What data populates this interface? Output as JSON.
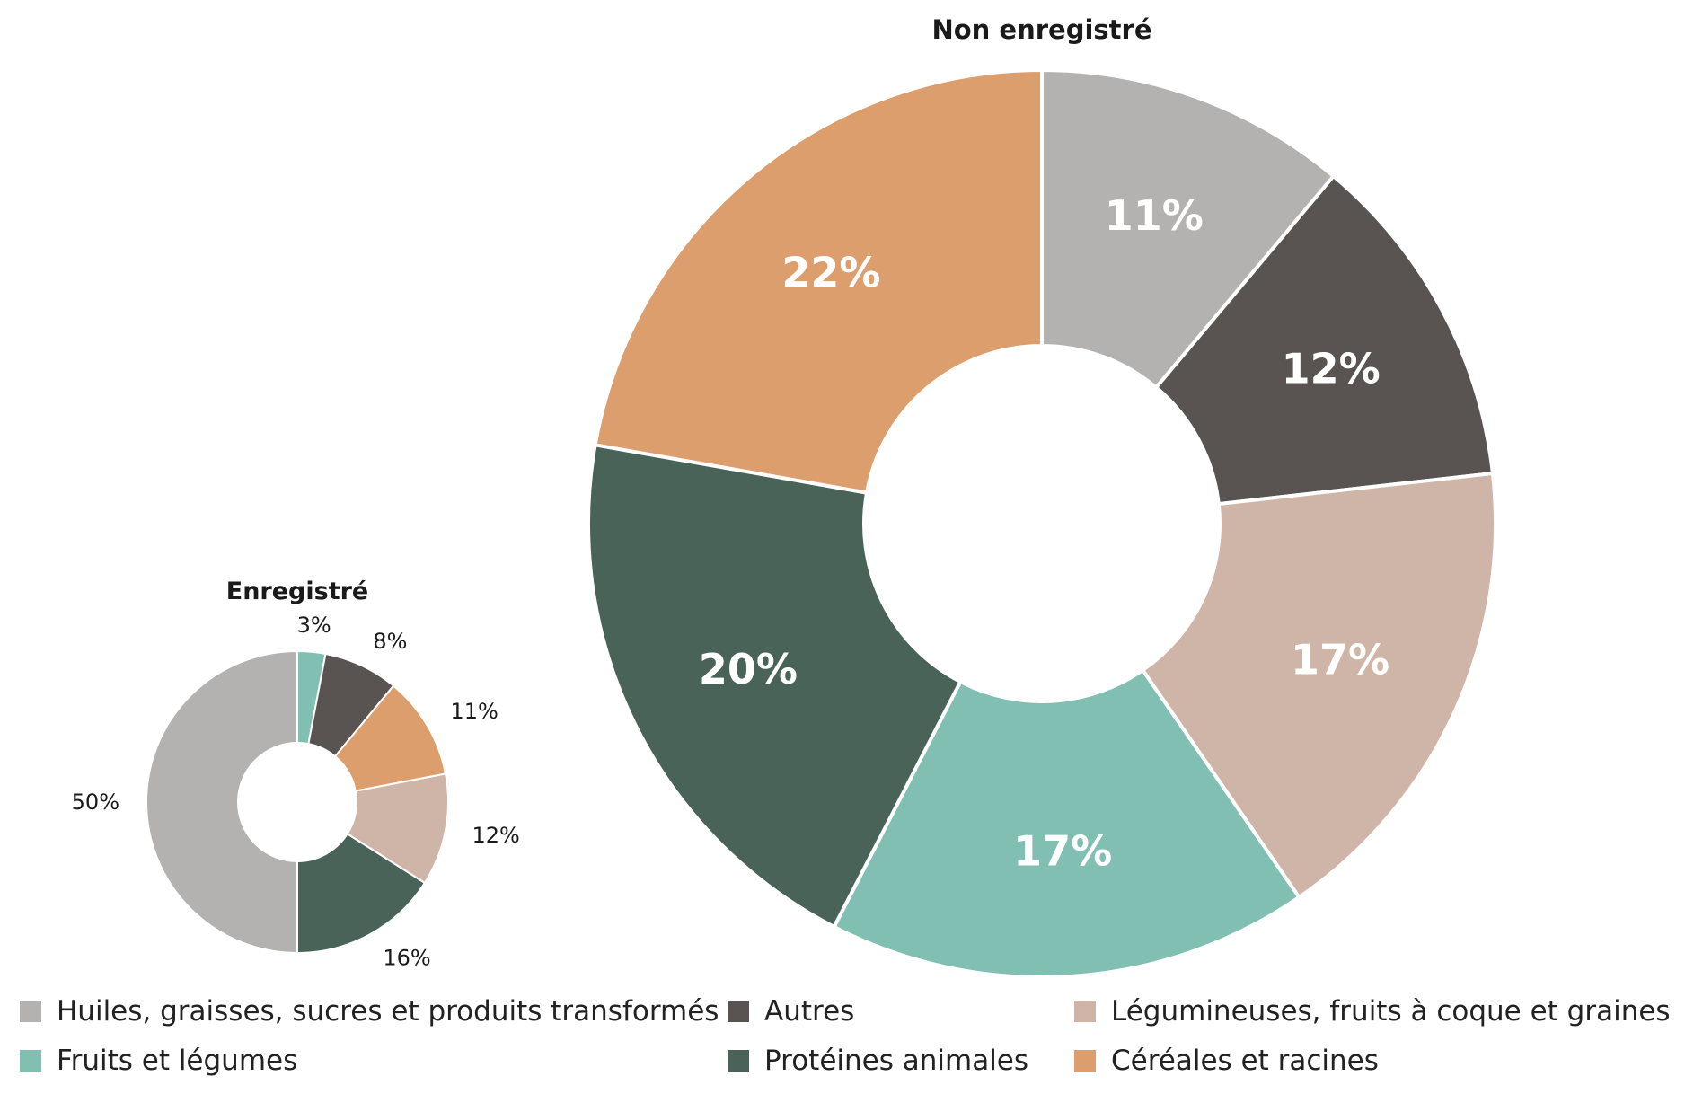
{
  "chart_data": [
    {
      "type": "pie",
      "title": "Non enregistré",
      "slices": [
        {
          "label": "Huiles, graisses, sucres et produits transformés",
          "value": 11,
          "text": "11%",
          "color": "#b3b2b0"
        },
        {
          "label": "Autres",
          "value": 12,
          "text": "12%",
          "color": "#595452"
        },
        {
          "label": "Légumineuses, fruits à coque et graines",
          "value": 17,
          "text": "17%",
          "color": "#cfb5a7"
        },
        {
          "label": "Fruits et légumes",
          "value": 17,
          "text": "17%",
          "color": "#82bfb3"
        },
        {
          "label": "Protéines animales",
          "value": 20,
          "text": "20%",
          "color": "#4a6359"
        },
        {
          "label": "Céréales et racines",
          "value": 22,
          "text": "22%",
          "color": "#dc9e6c"
        }
      ]
    },
    {
      "type": "pie",
      "title": "Enregistré",
      "slices": [
        {
          "label": "Fruits et légumes",
          "value": 3,
          "text": "3%",
          "color": "#82bfb3"
        },
        {
          "label": "Autres",
          "value": 8,
          "text": "8%",
          "color": "#595452"
        },
        {
          "label": "Céréales et racines",
          "value": 11,
          "text": "11%",
          "color": "#dc9e6c"
        },
        {
          "label": "Légumineuses, fruits à coque et graines",
          "value": 12,
          "text": "12%",
          "color": "#cfb5a7"
        },
        {
          "label": "Protéines animales",
          "value": 16,
          "text": "16%",
          "color": "#4a6359"
        },
        {
          "label": "Huiles, graisses, sucres et produits transformés",
          "value": 50,
          "text": "50%",
          "color": "#b3b2b0"
        }
      ]
    }
  ],
  "legend": [
    {
      "label": "Huiles, graisses, sucres et produits transformés",
      "color": "#b3b2b0"
    },
    {
      "label": "Autres",
      "color": "#595452"
    },
    {
      "label": "Légumineuses, fruits à coque et graines",
      "color": "#cfb5a7"
    },
    {
      "label": "Fruits et légumes",
      "color": "#82bfb3"
    },
    {
      "label": "Protéines animales",
      "color": "#4a6359"
    },
    {
      "label": "Céréales et racines",
      "color": "#dc9e6c"
    }
  ]
}
